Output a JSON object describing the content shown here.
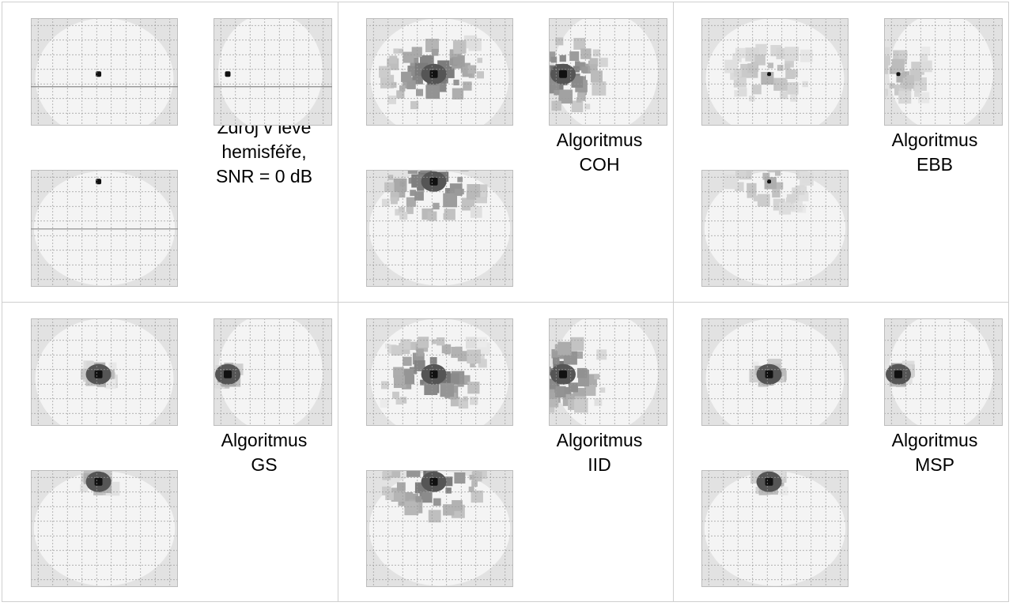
{
  "panels": [
    {
      "key": "source",
      "caption": [
        "Zdroj v levé",
        "hemisféře,",
        "SNR = 0 dB"
      ],
      "pattern": "point",
      "cursor": true
    },
    {
      "key": "coh",
      "caption": [
        "Algoritmus",
        "COH"
      ],
      "pattern": "wide",
      "cursor": false
    },
    {
      "key": "ebb",
      "caption": [
        "Algoritmus",
        "EBB"
      ],
      "pattern": "faint",
      "cursor": false
    },
    {
      "key": "gs",
      "caption": [
        "Algoritmus",
        "GS"
      ],
      "pattern": "compact",
      "cursor": false
    },
    {
      "key": "iid",
      "caption": [
        "Algoritmus",
        "IID"
      ],
      "pattern": "wide",
      "cursor": false
    },
    {
      "key": "msp",
      "caption": [
        "Algoritmus",
        "MSP"
      ],
      "pattern": "compact",
      "cursor": false
    }
  ],
  "colors": {
    "background": "#ffffff",
    "brain": "#f4f4f4",
    "outside": "#e2e2e2",
    "grid": "#9a9a9a",
    "divider": "#cfcfcf",
    "peak": "#111111"
  }
}
